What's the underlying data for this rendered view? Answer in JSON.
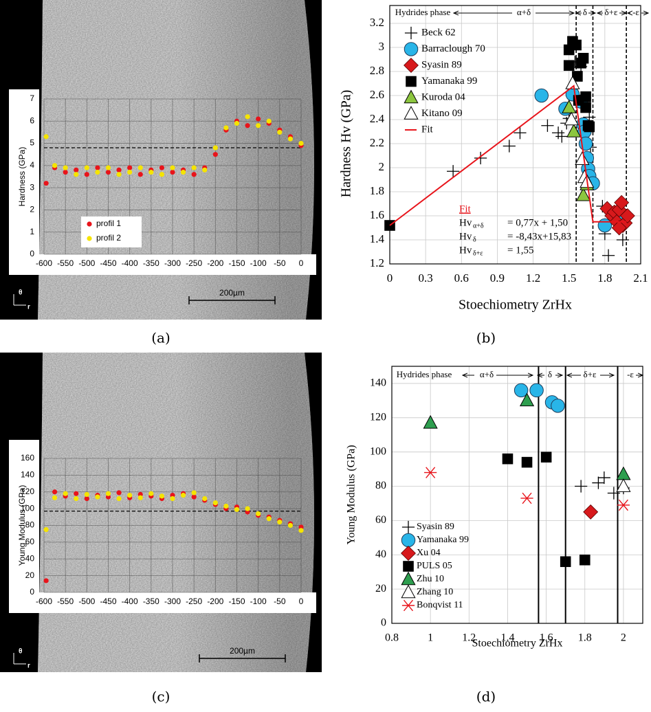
{
  "chart_data": [
    {
      "type": "scatter",
      "caption": "(a)",
      "y_label": "Hardness (GPa)",
      "scale_bar": "200µm",
      "orientation_labels": [
        "θ",
        "r"
      ],
      "xlim": [
        -600,
        0
      ],
      "ylim": [
        0,
        7
      ],
      "xticks": [
        -600,
        -550,
        -500,
        -450,
        -400,
        -350,
        -300,
        -250,
        -200,
        -150,
        -100,
        -50,
        0
      ],
      "yticks": [
        0,
        1,
        2,
        3,
        4,
        5,
        6,
        7
      ],
      "grid": true,
      "hlines": [
        4.8
      ],
      "series": [
        {
          "name": "profil 1",
          "color": "#e8141b",
          "marker": "dot",
          "x": [
            -595,
            -575,
            -550,
            -525,
            -500,
            -475,
            -450,
            -425,
            -400,
            -375,
            -350,
            -325,
            -300,
            -275,
            -250,
            -225,
            -200,
            -175,
            -150,
            -125,
            -100,
            -75,
            -50,
            -25,
            0
          ],
          "values": [
            3.2,
            3.9,
            3.7,
            3.8,
            3.6,
            3.9,
            3.7,
            3.8,
            3.9,
            3.6,
            3.8,
            3.9,
            3.7,
            3.8,
            3.6,
            3.9,
            4.5,
            5.6,
            6.0,
            5.8,
            6.1,
            5.9,
            5.6,
            5.3,
            4.9
          ]
        },
        {
          "name": "profil 2",
          "color": "#f5e400",
          "marker": "dot",
          "x": [
            -595,
            -575,
            -550,
            -525,
            -500,
            -475,
            -450,
            -425,
            -400,
            -375,
            -350,
            -325,
            -300,
            -275,
            -250,
            -225,
            -200,
            -175,
            -150,
            -125,
            -100,
            -75,
            -50,
            -25,
            0
          ],
          "values": [
            5.3,
            4.0,
            3.9,
            3.6,
            3.9,
            3.7,
            3.9,
            3.6,
            3.7,
            3.9,
            3.7,
            3.6,
            3.9,
            3.7,
            3.9,
            3.8,
            4.8,
            5.7,
            5.9,
            6.2,
            5.8,
            6.0,
            5.5,
            5.2,
            5.0
          ]
        }
      ]
    },
    {
      "type": "scatter",
      "caption": "(b)",
      "x_label": "Stoechiometry ZrHx",
      "y_label": "Hardness Hv (GPa)",
      "xlim": [
        0,
        2.1
      ],
      "ylim": [
        1.2,
        3.2
      ],
      "xticks": [
        0,
        0.3,
        0.6,
        0.9,
        1.2,
        1.5,
        1.8,
        2.1
      ],
      "yticks": [
        1.2,
        1.4,
        1.6,
        1.8,
        2,
        2.2,
        2.4,
        2.6,
        2.8,
        3,
        3.2
      ],
      "grid": true,
      "vlines": [
        1.56,
        1.7,
        1.98
      ],
      "vline_style": "dashed",
      "phase_labels": [
        "Hydrides phase",
        "α+δ",
        "δ",
        "δ+ε",
        "-ε"
      ],
      "annotation": {
        "title": "Fit",
        "lines": [
          [
            "Hv",
            "α+δ",
            "= 0,77x + 1,50"
          ],
          [
            "Hv",
            "δ",
            "= -8,43x+15,83"
          ],
          [
            "Hv",
            "δ+ε",
            "= 1,55"
          ]
        ]
      },
      "series": [
        {
          "name": "Beck 62",
          "color": "#000000",
          "marker": "plus",
          "x": [
            0.53,
            0.76,
            1.0,
            1.09,
            1.32,
            1.41,
            1.44,
            1.48,
            1.5,
            1.55,
            1.6,
            1.67,
            1.68,
            1.78,
            1.8,
            1.83,
            1.95
          ],
          "values": [
            1.97,
            2.08,
            2.18,
            2.29,
            2.35,
            2.29,
            2.26,
            2.37,
            2.41,
            2.88,
            2.84,
            2.42,
            2.17,
            1.68,
            1.45,
            1.27,
            1.4
          ]
        },
        {
          "name": "Barraclough 70",
          "color": "#29b5e8",
          "marker": "circle",
          "x": [
            1.27,
            1.47,
            1.53,
            1.6,
            1.62,
            1.63,
            1.64,
            1.65,
            1.66,
            1.67,
            1.7,
            1.8,
            1.93
          ],
          "values": [
            2.6,
            2.49,
            2.61,
            2.55,
            2.36,
            2.3,
            2.2,
            2.08,
            1.99,
            1.93,
            1.87,
            1.52,
            1.6
          ]
        },
        {
          "name": "Syasin 89",
          "color": "#d7191c",
          "marker": "diamond",
          "x": [
            1.82,
            1.86,
            1.88,
            1.9,
            1.92,
            1.94,
            1.95,
            1.97,
            1.99,
            1.92
          ],
          "values": [
            1.66,
            1.6,
            1.63,
            1.55,
            1.65,
            1.71,
            1.52,
            1.54,
            1.6,
            1.5
          ]
        },
        {
          "name": "Yamanaka 99",
          "color": "#000000",
          "marker": "square",
          "x": [
            0,
            1.5,
            1.5,
            1.53,
            1.56,
            1.57,
            1.58,
            1.6,
            1.62,
            1.64,
            1.64,
            1.66,
            1.67
          ],
          "values": [
            1.52,
            2.98,
            2.85,
            3.05,
            3.02,
            2.76,
            2.56,
            2.87,
            2.91,
            2.5,
            2.59,
            2.35,
            2.34
          ]
        },
        {
          "name": "Kuroda 04",
          "color": "#8cc63f",
          "marker": "triangle",
          "x": [
            1.5,
            1.54,
            1.62,
            1.65
          ],
          "values": [
            2.5,
            2.3,
            1.77,
            1.86
          ]
        },
        {
          "name": "Kitano 09",
          "color": "#ffffff",
          "marker": "open-triangle",
          "x": [
            1.53,
            1.52,
            1.61,
            1.63,
            1.65
          ],
          "values": [
            2.7,
            2.4,
            2.07,
            1.92,
            1.88
          ]
        },
        {
          "name": "Fit",
          "color": "#e8141b",
          "marker": "line",
          "x": [
            0,
            1.54,
            1.7,
            1.98
          ],
          "values": [
            1.52,
            2.68,
            1.55,
            1.55
          ]
        }
      ]
    },
    {
      "type": "scatter",
      "caption": "(c)",
      "y_label": "Young Modulus (GPa)",
      "scale_bar": "200µm",
      "orientation_labels": [
        "θ",
        "r"
      ],
      "xlim": [
        -600,
        0
      ],
      "ylim": [
        0,
        160
      ],
      "xticks": [
        -600,
        -550,
        -500,
        -450,
        -400,
        -350,
        -300,
        -250,
        -200,
        -150,
        -100,
        -50,
        0
      ],
      "yticks": [
        0,
        20,
        40,
        60,
        80,
        100,
        120,
        140,
        160
      ],
      "grid": true,
      "hlines": [
        97
      ],
      "series": [
        {
          "color": "#e8141b",
          "marker": "dot",
          "x": [
            -595,
            -575,
            -550,
            -525,
            -500,
            -475,
            -450,
            -425,
            -400,
            -375,
            -350,
            -325,
            -300,
            -275,
            -250,
            -225,
            -200,
            -175,
            -150,
            -125,
            -100,
            -75,
            -50,
            -25,
            0
          ],
          "values": [
            14,
            120,
            115,
            118,
            112,
            116,
            114,
            119,
            113,
            117,
            115,
            112,
            116,
            118,
            114,
            110,
            105,
            100,
            102,
            96,
            92,
            90,
            86,
            82,
            78
          ]
        },
        {
          "color": "#f5e400",
          "marker": "dot",
          "x": [
            -595,
            -575,
            -550,
            -525,
            -500,
            -475,
            -450,
            -425,
            -400,
            -375,
            -350,
            -325,
            -300,
            -275,
            -250,
            -225,
            -200,
            -175,
            -150,
            -125,
            -100,
            -75,
            -50,
            -25,
            0
          ],
          "values": [
            75,
            113,
            118,
            112,
            117,
            114,
            118,
            112,
            116,
            113,
            118,
            115,
            112,
            116,
            119,
            112,
            107,
            103,
            99,
            100,
            94,
            88,
            84,
            80,
            74
          ]
        }
      ]
    },
    {
      "type": "scatter",
      "caption": "(d)",
      "x_label": "Stoechiometry ZrHx",
      "y_label": "Young Modulus (GPa)",
      "xlim": [
        0.8,
        2.1
      ],
      "ylim": [
        0,
        150
      ],
      "xticks": [
        0.8,
        1,
        1.2,
        1.4,
        1.6,
        1.8,
        2
      ],
      "yticks": [
        0,
        20,
        40,
        60,
        80,
        100,
        120,
        140
      ],
      "grid": true,
      "vlines": [
        1.56,
        1.7,
        1.97
      ],
      "vline_style": "solid",
      "phase_labels": [
        "Hydrides phase",
        "α+δ",
        "δ",
        "δ+ε",
        "-ε"
      ],
      "series": [
        {
          "name": "Syasin 89",
          "color": "#000000",
          "marker": "plus",
          "x": [
            1.78,
            1.87,
            1.9,
            1.95,
            2.0
          ],
          "values": [
            80,
            82,
            85,
            76,
            79
          ]
        },
        {
          "name": "Yamanaka 99",
          "color": "#29b5e8",
          "marker": "circle",
          "x": [
            1.47,
            1.55,
            1.63,
            1.66
          ],
          "values": [
            136,
            136,
            129,
            127
          ]
        },
        {
          "name": "Xu 04",
          "color": "#d7191c",
          "marker": "diamond",
          "x": [
            1.83
          ],
          "values": [
            65
          ]
        },
        {
          "name": "PULS 05",
          "color": "#000000",
          "marker": "square",
          "x": [
            1.4,
            1.5,
            1.6,
            1.7,
            1.8
          ],
          "values": [
            96,
            94,
            97,
            36,
            37
          ]
        },
        {
          "name": "Zhu 10",
          "color": "#2e9e4f",
          "marker": "triangle",
          "x": [
            1,
            1.5,
            2
          ],
          "values": [
            117,
            130,
            87
          ]
        },
        {
          "name": "Zhang 10",
          "color": "#ffffff",
          "marker": "open-triangle",
          "x": [
            2
          ],
          "values": [
            80
          ]
        },
        {
          "name": "Bonqvist 11",
          "color": "#e8141b",
          "marker": "asterisk",
          "x": [
            1,
            1.5,
            2
          ],
          "values": [
            88,
            73,
            69
          ]
        }
      ]
    }
  ]
}
